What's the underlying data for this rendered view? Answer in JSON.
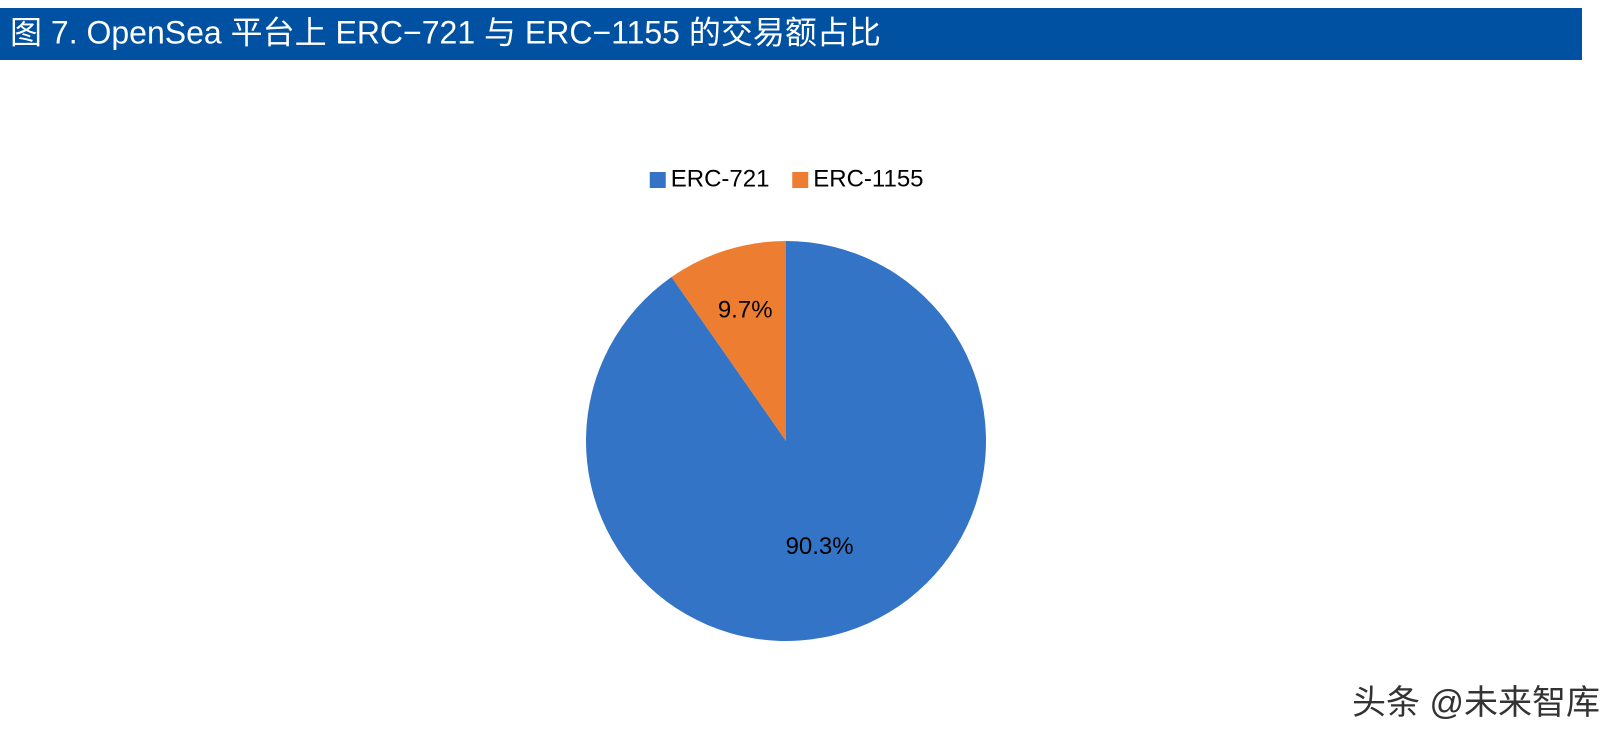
{
  "chart_data": {
    "type": "pie",
    "title": "图 7. OpenSea 平台上 ERC−721 与 ERC−1155 的交易额占比",
    "series": [
      {
        "name": "ERC-721",
        "color": "#3474c6",
        "values": [
          90.3
        ],
        "value_labels": [
          "90.3%"
        ]
      },
      {
        "name": "ERC-1155",
        "color": "#ed7d31",
        "values": [
          9.7
        ],
        "value_labels": [
          "9.7%"
        ]
      }
    ],
    "legend": "top",
    "watermark": "头条 @未来智库"
  }
}
